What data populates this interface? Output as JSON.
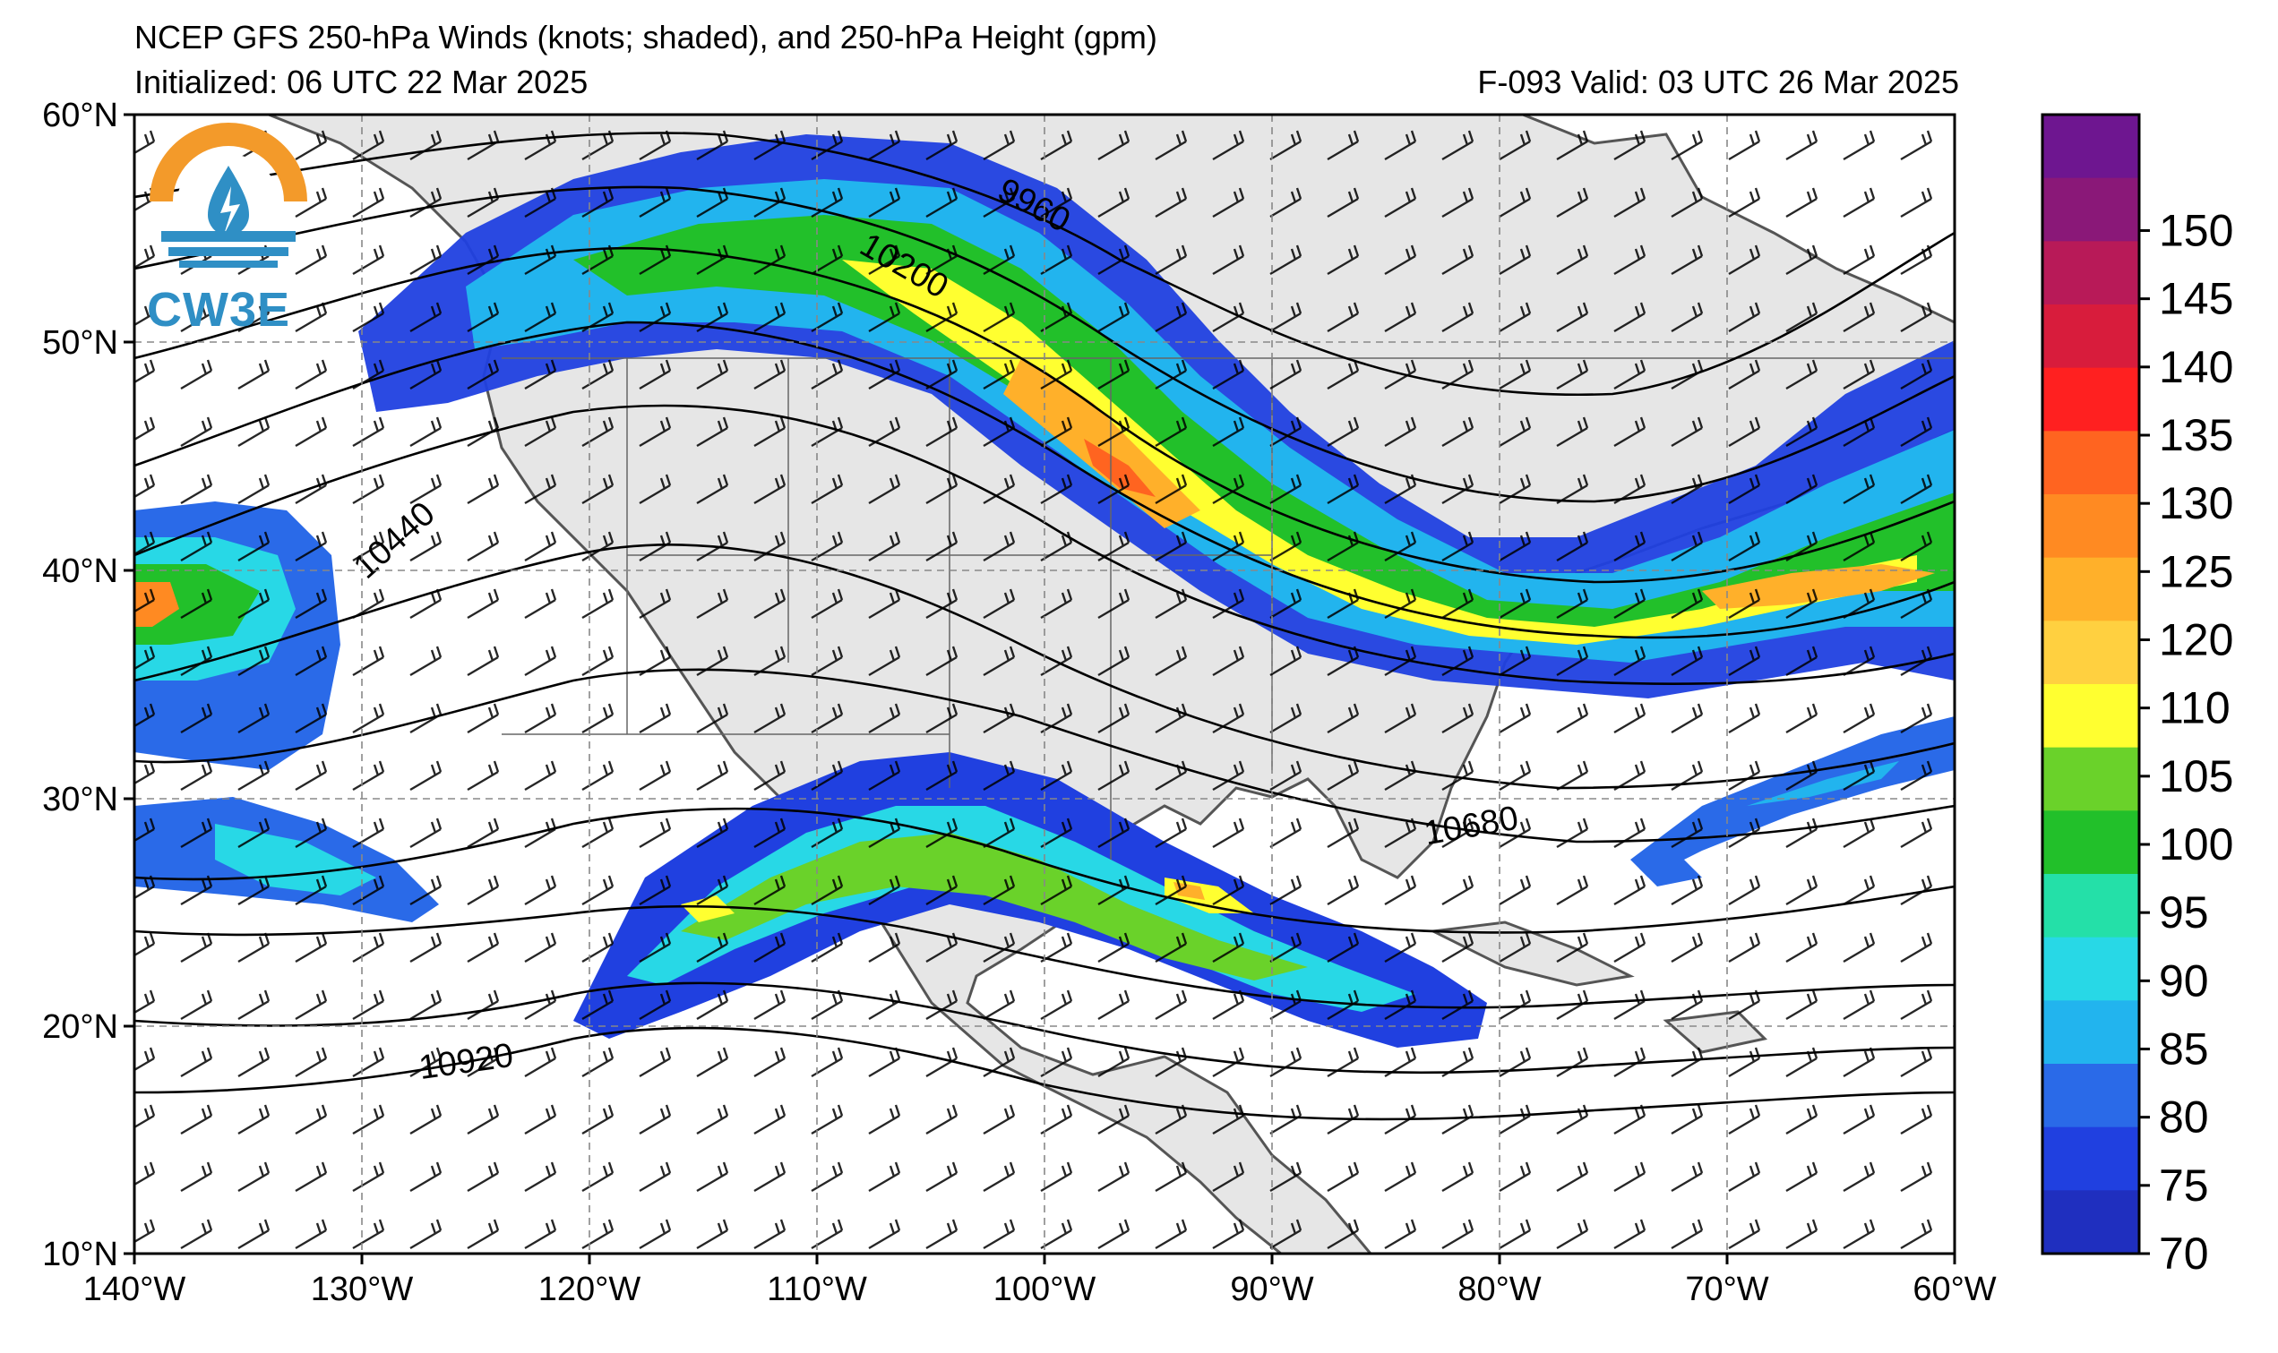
{
  "title": "NCEP GFS 250-hPa Winds (knots; shaded), and 250-hPa Height (gpm)",
  "initialized": "Initialized: 06 UTC 22 Mar 2025",
  "valid": "F-093  Valid: 03 UTC 26 Mar 2025",
  "logo_text": "CW3E",
  "lat_labels": [
    "60°N",
    "50°N",
    "40°N",
    "30°N",
    "20°N",
    "10°N"
  ],
  "lon_labels": [
    "140°W",
    "130°W",
    "120°W",
    "110°W",
    "100°W",
    "90°W",
    "80°W",
    "70°W",
    "60°W"
  ],
  "height_labels": [
    "9960",
    "10200",
    "10440",
    "10680",
    "10920"
  ],
  "colorbar": {
    "labels": [
      "70",
      "75",
      "80",
      "85",
      "90",
      "95",
      "100",
      "105",
      "110",
      "120",
      "125",
      "130",
      "135",
      "140",
      "145",
      "150"
    ],
    "colors": [
      "#1f2fbf",
      "#2040e0",
      "#2a6ae8",
      "#22b4ee",
      "#28d8e6",
      "#24e0a8",
      "#22c02a",
      "#6ad22a",
      "#ffff30",
      "#ffd040",
      "#ffb02a",
      "#ff8a22",
      "#ff6420",
      "#ff2020",
      "#d81c3c",
      "#b81a58",
      "#8a1878",
      "#6e1690"
    ]
  },
  "map_extent": {
    "lon": [
      -140,
      -60
    ],
    "lat": [
      10,
      60
    ]
  },
  "icons": {
    "logo": "cw3e-logo-icon"
  }
}
